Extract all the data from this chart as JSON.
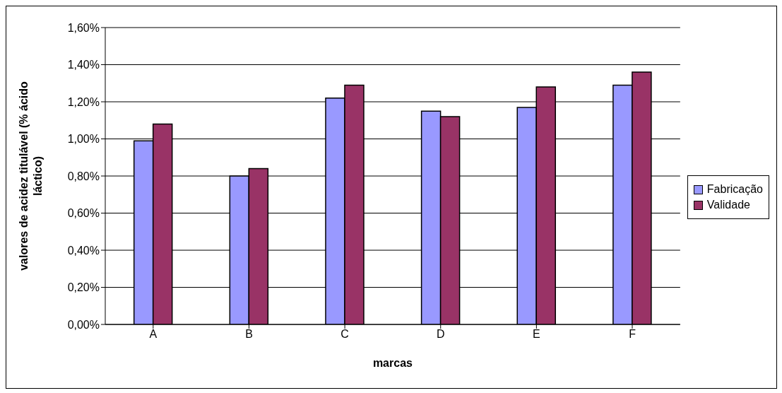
{
  "chart_data": {
    "type": "bar",
    "xlabel": "marcas",
    "ylabel": "valores de acidez titulável (% ácido láctico)",
    "categories": [
      "A",
      "B",
      "C",
      "D",
      "E",
      "F"
    ],
    "series": [
      {
        "name": "Fabricação",
        "color": "#9999ff",
        "values": [
          0.99,
          0.8,
          1.22,
          1.15,
          1.17,
          1.29
        ]
      },
      {
        "name": "Validade",
        "color": "#993366",
        "values": [
          1.08,
          0.84,
          1.29,
          1.12,
          1.28,
          1.36
        ]
      }
    ],
    "ylim": [
      0,
      1.6
    ],
    "yticks": [
      {
        "value": 0,
        "label": "0,00%"
      },
      {
        "value": 0.2,
        "label": "0,20%"
      },
      {
        "value": 0.4,
        "label": "0,40%"
      },
      {
        "value": 0.6,
        "label": "0,60%"
      },
      {
        "value": 0.8,
        "label": "0,80%"
      },
      {
        "value": 1.0,
        "label": "1,00%"
      },
      {
        "value": 1.2,
        "label": "1,20%"
      },
      {
        "value": 1.4,
        "label": "1,40%"
      },
      {
        "value": 1.6,
        "label": "1,60%"
      }
    ],
    "grid": "y",
    "legend": "right"
  }
}
